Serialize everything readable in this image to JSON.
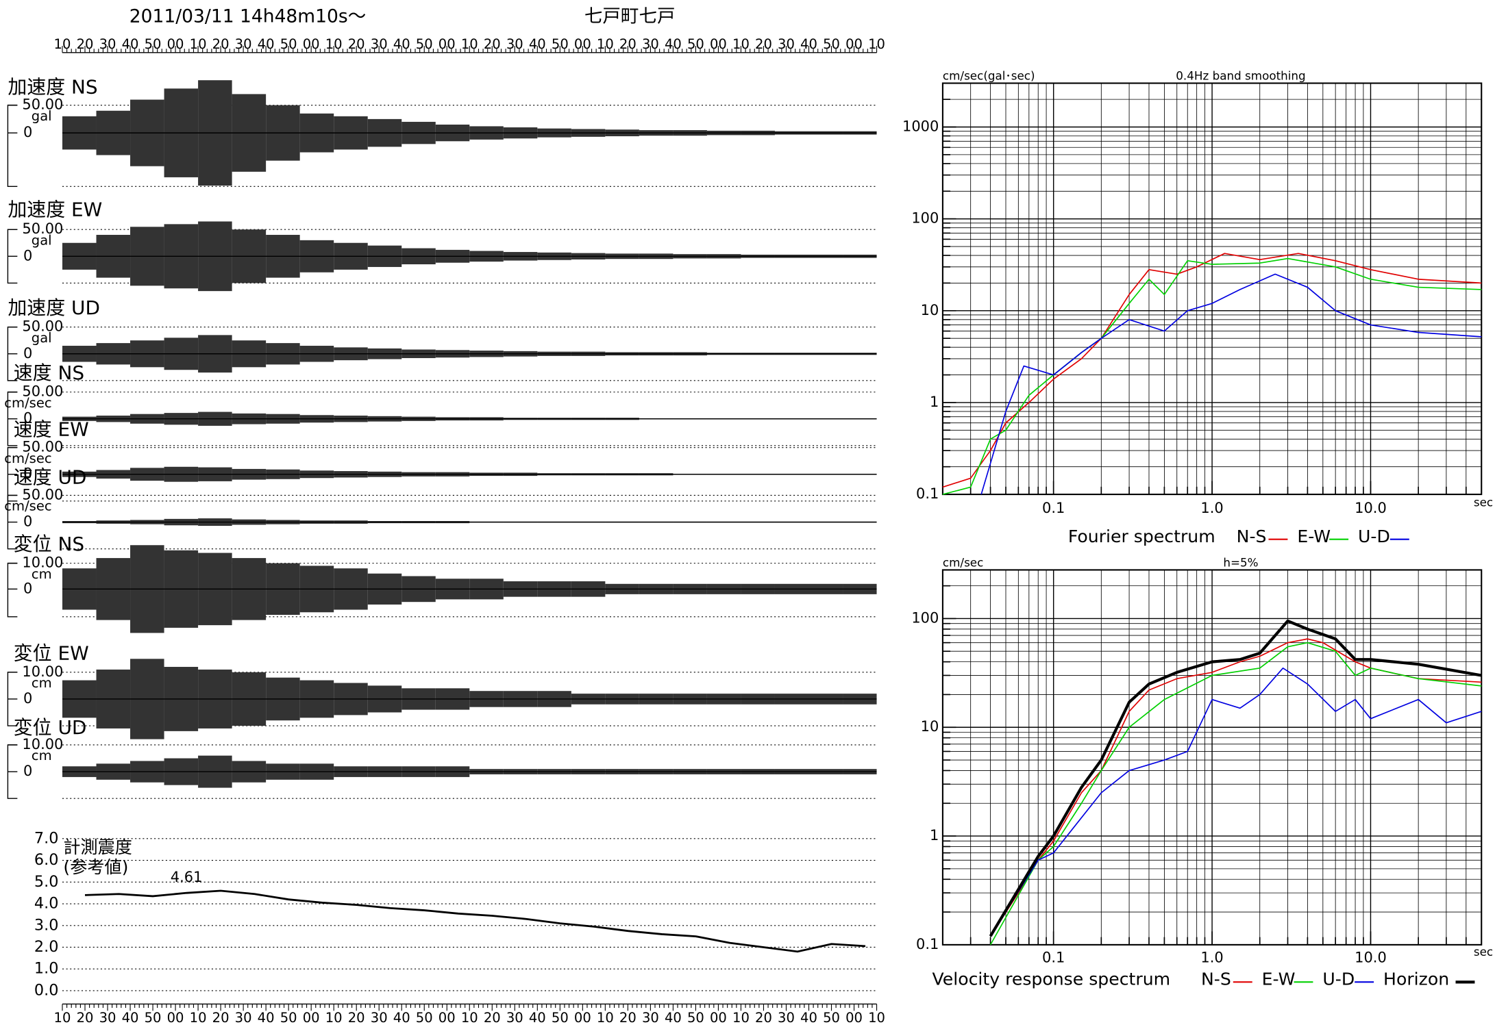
{
  "header": {
    "date": "2011/03/11  14h48m10s～",
    "station": "七戸町七戸"
  },
  "waveforms": {
    "xlim": [
      0,
      360
    ],
    "time_labels": [
      "10",
      "20",
      "30",
      "40",
      "50",
      "00",
      "10",
      "20",
      "30",
      "40",
      "50",
      "00",
      "10",
      "20",
      "30",
      "40",
      "50",
      "00",
      "10",
      "20",
      "30",
      "40",
      "50",
      "00",
      "10",
      "20",
      "30",
      "40",
      "50",
      "00",
      "10",
      "20",
      "30",
      "40",
      "50",
      "00",
      "10"
    ],
    "panels": [
      {
        "label": "加速度 NS",
        "scale_tick": {
          "value": 50,
          "label": "50.00"
        },
        "unit": "gal",
        "zero_tick": 0,
        "envelope": [
          30,
          40,
          60,
          80,
          95,
          70,
          50,
          35,
          30,
          25,
          20,
          15,
          12,
          10,
          8,
          7,
          6,
          5,
          5,
          4,
          4,
          3,
          3,
          3
        ]
      },
      {
        "label": "加速度 EW",
        "scale_tick": {
          "value": 50,
          "label": "50.00"
        },
        "unit": "gal",
        "zero_tick": 0,
        "envelope": [
          25,
          40,
          55,
          60,
          65,
          50,
          40,
          30,
          25,
          20,
          15,
          12,
          10,
          8,
          7,
          6,
          5,
          5,
          4,
          4,
          3,
          3,
          3,
          3
        ]
      },
      {
        "label": "加速度 UD",
        "scale_tick": {
          "value": 50,
          "label": "50.00"
        },
        "unit": "gal",
        "zero_tick": 0,
        "envelope": [
          15,
          20,
          25,
          30,
          35,
          25,
          20,
          15,
          12,
          10,
          8,
          7,
          6,
          5,
          4,
          4,
          3,
          3,
          3,
          2,
          2,
          2,
          2,
          2
        ]
      },
      {
        "label": "速度 NS",
        "scale_tick": {
          "value": 50,
          "label": "50.00"
        },
        "unit": "cm/sec",
        "zero_tick": 0,
        "envelope": [
          4,
          6,
          9,
          11,
          13,
          10,
          9,
          7,
          6,
          5,
          4,
          3,
          3,
          2,
          2,
          2,
          2,
          1,
          1,
          1,
          1,
          1,
          1,
          1
        ]
      },
      {
        "label": "速度 EW",
        "scale_tick": {
          "value": 50,
          "label": "50.00"
        },
        "unit": "cm/sec",
        "zero_tick": 0,
        "envelope": [
          5,
          8,
          12,
          14,
          13,
          10,
          9,
          7,
          6,
          5,
          4,
          4,
          3,
          3,
          2,
          2,
          2,
          2,
          1,
          1,
          1,
          1,
          1,
          1
        ]
      },
      {
        "label": "速度 UD",
        "scale_tick": {
          "value": 50,
          "label": "50.00"
        },
        "unit": "cm/sec",
        "zero_tick": 0,
        "envelope": [
          2,
          3,
          4,
          6,
          7,
          5,
          4,
          3,
          3,
          2,
          2,
          2,
          1,
          1,
          1,
          1,
          1,
          1,
          1,
          1,
          1,
          1,
          1,
          1
        ]
      },
      {
        "label": "変位 NS",
        "scale_tick": {
          "value": 10,
          "label": "10.00"
        },
        "unit": "cm",
        "zero_tick": 0,
        "envelope": [
          8,
          12,
          17,
          15,
          14,
          12,
          10,
          9,
          8,
          6,
          5,
          4,
          4,
          3,
          3,
          3,
          2,
          2,
          2,
          2,
          2,
          2,
          2,
          2
        ]
      },
      {
        "label": "変位 EW",
        "scale_tick": {
          "value": 10,
          "label": "10.00"
        },
        "unit": "cm",
        "zero_tick": 0,
        "envelope": [
          7,
          11,
          15,
          12,
          11,
          10,
          8,
          7,
          6,
          5,
          4,
          4,
          3,
          3,
          3,
          2,
          2,
          2,
          2,
          2,
          2,
          2,
          2,
          2
        ]
      },
      {
        "label": "変位 UD",
        "scale_tick": {
          "value": 10,
          "label": "10.00"
        },
        "unit": "cm",
        "zero_tick": 0,
        "envelope": [
          2,
          3,
          4,
          5,
          6,
          4,
          3,
          3,
          2,
          2,
          2,
          2,
          1,
          1,
          1,
          1,
          1,
          1,
          1,
          1,
          1,
          1,
          1,
          1
        ]
      }
    ]
  },
  "intensity": {
    "title": "計測震度",
    "subtitle": "(参考値)",
    "peak": 4.61,
    "x": [
      10,
      25,
      40,
      55,
      70,
      85,
      100,
      115,
      130,
      145,
      160,
      175,
      190,
      205,
      220,
      235,
      250,
      265,
      280,
      295,
      310,
      325,
      340,
      355
    ],
    "values": [
      4.4,
      4.45,
      4.35,
      4.5,
      4.6,
      4.45,
      4.2,
      4.05,
      3.95,
      3.8,
      3.7,
      3.55,
      3.45,
      3.3,
      3.1,
      2.95,
      2.75,
      2.6,
      2.5,
      2.2,
      2.0,
      1.8,
      2.15,
      2.05
    ],
    "ylim": [
      0,
      7
    ],
    "yticks": [
      {
        "value": 0,
        "label": "0.0"
      },
      {
        "value": 1,
        "label": "1.0"
      },
      {
        "value": 2,
        "label": "2.0"
      },
      {
        "value": 3,
        "label": "3.0"
      },
      {
        "value": 4,
        "label": "4.0"
      },
      {
        "value": 5,
        "label": "5.0"
      },
      {
        "value": 6,
        "label": "6.0"
      },
      {
        "value": 7,
        "label": "7.0"
      }
    ]
  },
  "chart_data": [
    {
      "type": "line",
      "log_x": true,
      "log_y": true,
      "grid": true,
      "y_label": "cm/sec(gal･sec)",
      "subtitle": "0.4Hz band smoothing",
      "x_label": "sec",
      "legend_title": "Fourier spectrum",
      "xlim": [
        0.02,
        50
      ],
      "ylim": [
        0.1,
        3000
      ],
      "xticks": [
        0.1,
        {
          "value": 1,
          "label": "1.0"
        },
        {
          "value": 10,
          "label": "10.0"
        }
      ],
      "yticks": [
        0.1,
        1,
        10,
        100,
        1000
      ],
      "series": [
        {
          "name": "N-S",
          "color": "#e00000",
          "x": [
            0.02,
            0.03,
            0.04,
            0.05,
            0.07,
            0.1,
            0.15,
            0.2,
            0.3,
            0.4,
            0.6,
            0.8,
            1.2,
            2,
            3.5,
            6,
            10,
            20,
            50
          ],
          "values": [
            0.12,
            0.15,
            0.3,
            0.6,
            1.0,
            1.8,
            3,
            5,
            15,
            28,
            25,
            30,
            42,
            36,
            42,
            35,
            28,
            22,
            20
          ]
        },
        {
          "name": "E-W",
          "color": "#00d000",
          "x": [
            0.02,
            0.03,
            0.04,
            0.05,
            0.07,
            0.1,
            0.15,
            0.2,
            0.3,
            0.4,
            0.5,
            0.7,
            1,
            2,
            3,
            6,
            10,
            20,
            50
          ],
          "values": [
            0.1,
            0.12,
            0.4,
            0.5,
            1.2,
            2,
            3.5,
            5,
            12,
            22,
            15,
            35,
            32,
            33,
            37,
            30,
            22,
            18,
            17
          ]
        },
        {
          "name": "U-D",
          "color": "#0000e0",
          "x": [
            0.035,
            0.05,
            0.065,
            0.1,
            0.15,
            0.2,
            0.3,
            0.5,
            0.7,
            1,
            1.5,
            2.5,
            4,
            6,
            10,
            20,
            50
          ],
          "values": [
            0.1,
            0.8,
            2.5,
            2,
            3.5,
            5,
            8,
            6,
            10,
            12,
            17,
            25,
            18,
            10,
            7,
            5.8,
            5.2
          ]
        }
      ]
    },
    {
      "type": "line",
      "log_x": true,
      "log_y": true,
      "grid": true,
      "y_label": "cm/sec",
      "subtitle": "h=5%",
      "x_label": "sec",
      "legend_title": "Velocity response spectrum",
      "xlim": [
        0.02,
        50
      ],
      "ylim": [
        0.1,
        280
      ],
      "xticks": [
        0.1,
        {
          "value": 1,
          "label": "1.0"
        },
        {
          "value": 10,
          "label": "10.0"
        }
      ],
      "yticks": [
        0.1,
        1,
        10,
        100
      ],
      "series": [
        {
          "name": "N-S",
          "color": "#e00000",
          "x": [
            0.04,
            0.06,
            0.08,
            0.1,
            0.15,
            0.2,
            0.3,
            0.4,
            0.6,
            1,
            1.5,
            2,
            3,
            4,
            5,
            8,
            10,
            20,
            50
          ],
          "values": [
            0.12,
            0.3,
            0.6,
            0.9,
            2.5,
            4,
            14,
            22,
            28,
            32,
            40,
            45,
            60,
            65,
            60,
            40,
            35,
            28,
            26
          ]
        },
        {
          "name": "E-W",
          "color": "#00d000",
          "x": [
            0.04,
            0.08,
            0.1,
            0.15,
            0.2,
            0.3,
            0.5,
            1,
            2,
            3,
            4,
            6,
            8,
            10,
            20,
            50
          ],
          "values": [
            0.1,
            0.6,
            0.8,
            2,
            4,
            10,
            18,
            30,
            35,
            55,
            60,
            50,
            30,
            35,
            28,
            24
          ]
        },
        {
          "name": "U-D",
          "color": "#0000e0",
          "x": [
            0.04,
            0.08,
            0.1,
            0.2,
            0.3,
            0.5,
            0.7,
            1,
            1.5,
            2,
            2.8,
            4,
            6,
            8,
            10,
            20,
            30,
            50
          ],
          "values": [
            0.12,
            0.6,
            0.7,
            2.5,
            4,
            5,
            6,
            18,
            15,
            20,
            35,
            25,
            14,
            18,
            12,
            18,
            11,
            14
          ]
        },
        {
          "name": "Horizon",
          "color": "#000000",
          "width": 3,
          "x": [
            0.04,
            0.08,
            0.1,
            0.15,
            0.2,
            0.3,
            0.4,
            0.6,
            1,
            1.5,
            2,
            3,
            4,
            6,
            8,
            10,
            20,
            50
          ],
          "values": [
            0.12,
            0.65,
            1.0,
            2.8,
            5,
            17,
            25,
            32,
            40,
            42,
            48,
            95,
            80,
            65,
            42,
            42,
            38,
            30
          ]
        }
      ]
    }
  ]
}
